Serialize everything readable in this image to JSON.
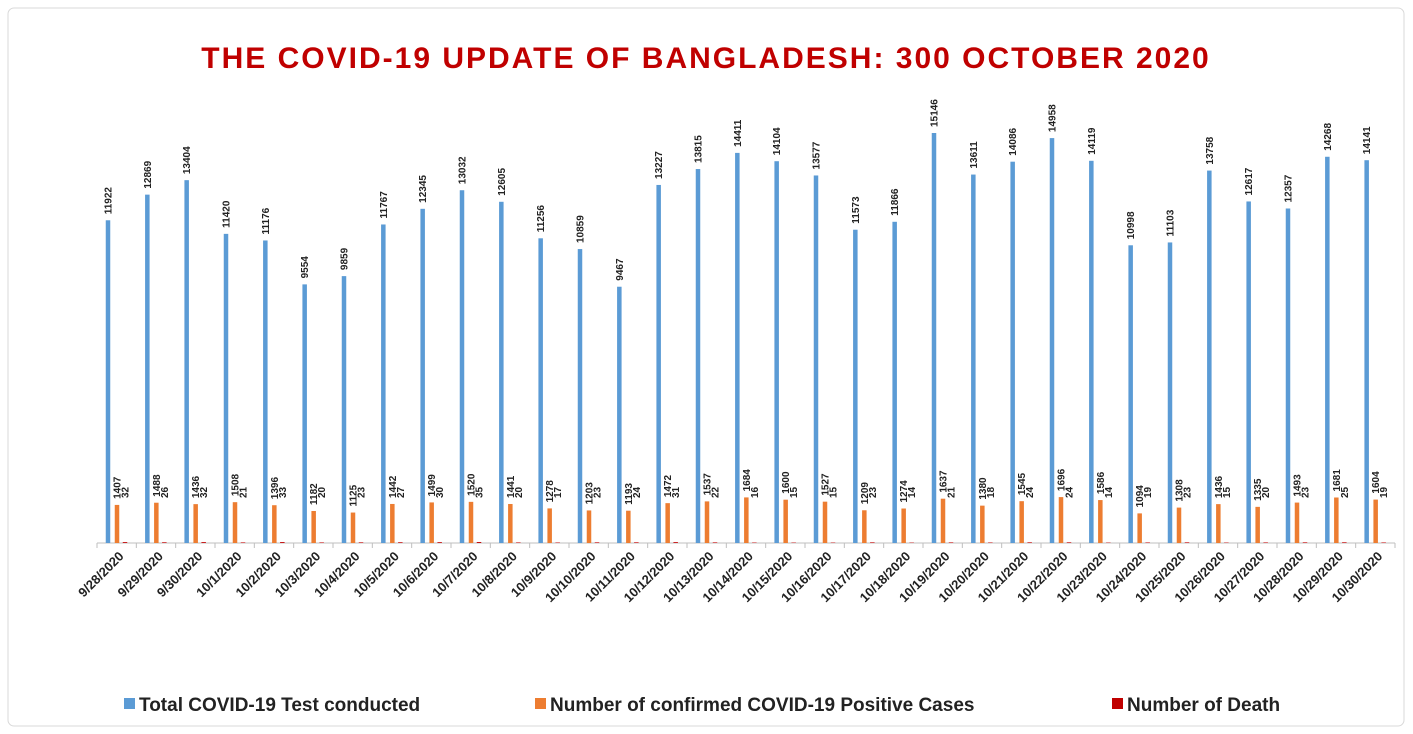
{
  "chart_data": {
    "type": "bar",
    "title": "THE COVID-19 UPDATE OF BANGLADESH: 300 OCTOBER 2020",
    "categories": [
      "9/28/2020",
      "9/29/2020",
      "9/30/2020",
      "10/1/2020",
      "10/2/2020",
      "10/3/2020",
      "10/4/2020",
      "10/5/2020",
      "10/6/2020",
      "10/7/2020",
      "10/8/2020",
      "10/9/2020",
      "10/10/2020",
      "10/11/2020",
      "10/12/2020",
      "10/13/2020",
      "10/14/2020",
      "10/15/2020",
      "10/16/2020",
      "10/17/2020",
      "10/18/2020",
      "10/19/2020",
      "10/20/2020",
      "10/21/2020",
      "10/22/2020",
      "10/23/2020",
      "10/24/2020",
      "10/25/2020",
      "10/26/2020",
      "10/27/2020",
      "10/28/2020",
      "10/29/2020",
      "10/30/2020"
    ],
    "series": [
      {
        "name": "Total COVID-19 Test conducted",
        "color": "#5b9bd5",
        "values": [
          11922,
          12869,
          13404,
          11420,
          11176,
          9554,
          9859,
          11767,
          12345,
          13032,
          12605,
          11256,
          10859,
          9467,
          13227,
          13815,
          14411,
          14104,
          13577,
          11573,
          11866,
          15146,
          13611,
          14086,
          14958,
          14119,
          10998,
          11103,
          13758,
          12617,
          12357,
          14268,
          14141
        ]
      },
      {
        "name": "Number of confirmed COVID-19 Positive Cases",
        "color": "#ed7d31",
        "values": [
          1407,
          1488,
          1436,
          1508,
          1396,
          1182,
          1125,
          1442,
          1499,
          1520,
          1441,
          1278,
          1203,
          1193,
          1472,
          1537,
          1684,
          1600,
          1527,
          1209,
          1274,
          1637,
          1380,
          1545,
          1696,
          1586,
          1094,
          1308,
          1436,
          1335,
          1493,
          1681,
          1604
        ]
      },
      {
        "name": "Number of Death",
        "color": "#c00000",
        "values": [
          32,
          26,
          32,
          21,
          33,
          20,
          23,
          27,
          30,
          35,
          20,
          17,
          23,
          24,
          31,
          22,
          16,
          15,
          15,
          23,
          14,
          21,
          18,
          24,
          24,
          14,
          19,
          23,
          15,
          20,
          23,
          25,
          19
        ]
      }
    ],
    "legend": "bottom"
  }
}
